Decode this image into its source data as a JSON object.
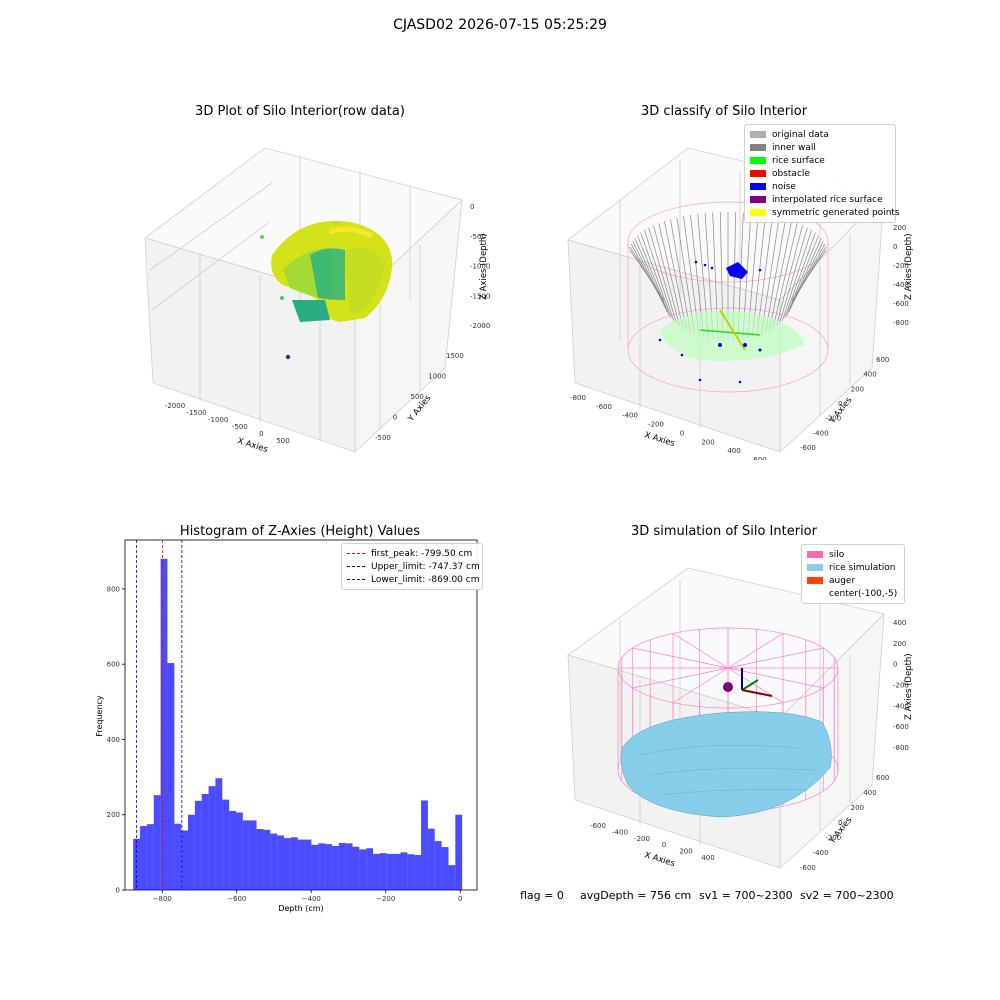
{
  "suptitle": "CJASD02 2026-07-15 05:25:29",
  "chart_data": [
    {
      "type": "scatter",
      "title": "3D Plot of Silo Interior(row data)",
      "xlabel": "X Axies",
      "ylabel": "Y Axies",
      "zlabel": "Z Axies (Depth)",
      "x_ticks": [
        "-2000",
        "-1500",
        "-1000",
        "-500",
        "0",
        "500"
      ],
      "y_ticks": [
        "-500",
        "0",
        "500",
        "1000",
        "1500"
      ],
      "z_ticks": [
        "0",
        "-500",
        "-1000",
        "-1500",
        "-2000"
      ],
      "colormap": "viridis"
    },
    {
      "type": "scatter",
      "title": "3D classify of Silo Interior",
      "xlabel": "X Axies",
      "ylabel": "Y Axies",
      "zlabel": "Z Axies (Depth)",
      "x_ticks": [
        "-800",
        "-600",
        "-400",
        "-200",
        "0",
        "200",
        "400",
        "600"
      ],
      "y_ticks": [
        "-600",
        "-400",
        "-200",
        "0",
        "200",
        "400",
        "600"
      ],
      "z_ticks": [
        "200",
        "0",
        "-200",
        "-400",
        "-600",
        "-800"
      ],
      "legend_position": "top-right",
      "legend": [
        {
          "label": "original data",
          "color": "#b0b0b0"
        },
        {
          "label": "inner wall",
          "color": "#808080"
        },
        {
          "label": "rice surface",
          "color": "#00ff00"
        },
        {
          "label": "obstacle",
          "color": "#ff0000"
        },
        {
          "label": "noise",
          "color": "#0000ff"
        },
        {
          "label": "interpolated rice surface",
          "color": "#800080"
        },
        {
          "label": "symmetric generated points",
          "color": "#ffff00"
        }
      ]
    },
    {
      "type": "bar",
      "title": "Histogram of Z-Axies (Height) Values",
      "xlabel": "Depth (cm)",
      "ylabel": "Frequency",
      "xlim": [
        -900,
        45
      ],
      "ylim": [
        0,
        930
      ],
      "x_ticks": [
        -800,
        -600,
        -400,
        -200,
        0
      ],
      "y_ticks": [
        0,
        200,
        400,
        600,
        800
      ],
      "bin_width": 18.4,
      "bin_start": -878,
      "values": [
        136,
        170,
        175,
        252,
        880,
        603,
        176,
        158,
        200,
        237,
        255,
        276,
        297,
        240,
        210,
        206,
        185,
        185,
        162,
        160,
        150,
        145,
        138,
        140,
        134,
        134,
        120,
        124,
        122,
        117,
        125,
        124,
        115,
        108,
        111,
        96,
        98,
        96,
        96,
        100,
        95,
        93,
        238,
        163,
        130,
        114,
        66,
        200
      ],
      "bar_color": "#0000ff",
      "vlines": [
        {
          "label": "first_peak: -799.50 cm",
          "value": -799.5,
          "color": "#ff0000"
        },
        {
          "label": "Upper_limit: -747.37 cm",
          "value": -747.37,
          "color": "#0000cc"
        },
        {
          "label": "Lower_limit: -869.00 cm",
          "value": -869.0,
          "color": "#0000cc"
        }
      ],
      "legend_position": "top-right"
    },
    {
      "type": "scatter",
      "title": "3D simulation of Silo Interior",
      "xlabel": "X Axies",
      "ylabel": "Y Axies",
      "zlabel": "Z Axies (Depth)",
      "x_ticks": [
        "-600",
        "-400",
        "-200",
        "0",
        "200",
        "400"
      ],
      "y_ticks": [
        "-600",
        "-400",
        "-200",
        "0",
        "200",
        "400",
        "600"
      ],
      "z_ticks": [
        "400",
        "200",
        "0",
        "-200",
        "-400",
        "-600",
        "-800"
      ],
      "legend_position": "top-right",
      "legend": [
        {
          "label": "silo",
          "color": "#ff69b4"
        },
        {
          "label": "rice simulation",
          "color": "#87ceeb"
        },
        {
          "label": "auger",
          "color": "#ff4500"
        },
        {
          "label": "center(-100,-5)",
          "color": "none"
        }
      ]
    }
  ],
  "status": {
    "flag": "flag = 0",
    "avg": "avgDepth = 756 cm",
    "sv1": "sv1 = 700~2300",
    "sv2": "sv2 = 700~2300"
  }
}
